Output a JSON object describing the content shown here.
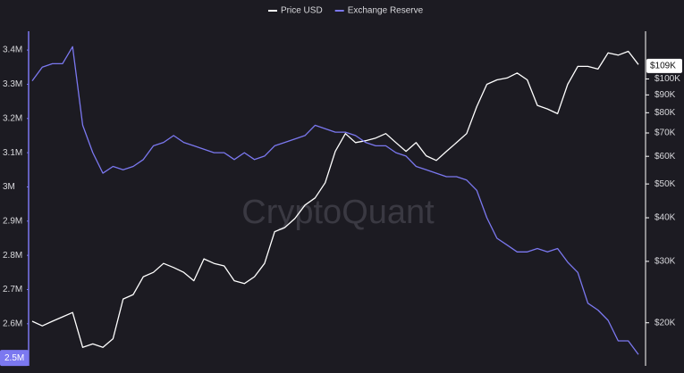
{
  "chart_data": {
    "type": "line",
    "watermark": "CryptoQuant",
    "legend": "top",
    "categories": [
      null,
      null,
      null,
      null,
      null,
      null,
      null,
      null,
      null,
      null,
      null,
      null,
      null,
      null,
      null,
      null,
      null,
      null,
      null,
      null,
      null,
      null,
      null,
      null,
      null,
      null,
      null,
      null,
      null,
      null,
      null,
      null,
      null,
      null,
      null,
      null,
      null,
      null,
      null,
      null,
      null,
      null,
      null,
      null,
      null,
      null,
      null,
      null,
      null,
      null,
      null,
      null,
      null,
      null,
      null,
      null,
      null,
      null,
      null,
      null,
      null
    ],
    "series": [
      {
        "name": "Price USD",
        "color": "#ffffff",
        "axis": "y2",
        "values": [
          20200,
          19600,
          20200,
          20800,
          21400,
          17000,
          17400,
          17000,
          18000,
          23400,
          24100,
          27100,
          27900,
          29600,
          28800,
          27900,
          26400,
          30500,
          29600,
          29100,
          26400,
          25900,
          27100,
          29600,
          36500,
          37500,
          39800,
          43500,
          45600,
          50400,
          62000,
          69700,
          65700,
          66500,
          67700,
          69700,
          65700,
          62000,
          65700,
          60200,
          58400,
          62000,
          65700,
          69700,
          83300,
          96500,
          99400,
          100600,
          104000,
          99400,
          84000,
          82000,
          79500,
          96500,
          108600,
          108600,
          106700,
          118700,
          117000,
          120000,
          110000
        ]
      },
      {
        "name": "Exchange Reserve",
        "color": "#7b78f0",
        "values": [
          3310000,
          3350000,
          3360000,
          3360000,
          3410000,
          3180000,
          3100000,
          3040000,
          3060000,
          3050000,
          3060000,
          3080000,
          3120000,
          3130000,
          3150000,
          3130000,
          3120000,
          3110000,
          3100000,
          3100000,
          3080000,
          3100000,
          3080000,
          3090000,
          3120000,
          3130000,
          3140000,
          3150000,
          3180000,
          3170000,
          3160000,
          3160000,
          3150000,
          3130000,
          3120000,
          3120000,
          3100000,
          3090000,
          3060000,
          3050000,
          3040000,
          3030000,
          3030000,
          3020000,
          2990000,
          2910000,
          2850000,
          2830000,
          2810000,
          2810000,
          2820000,
          2810000,
          2820000,
          2780000,
          2750000,
          2660000,
          2640000,
          2610000,
          2550000,
          2550000,
          2510000
        ]
      }
    ],
    "ylim": [
      2490000,
      3455000
    ],
    "yticks": [
      {
        "value": 2600000,
        "label": "2.6M"
      },
      {
        "value": 2700000,
        "label": "2.7M"
      },
      {
        "value": 2800000,
        "label": "2.8M"
      },
      {
        "value": 2900000,
        "label": "2.9M"
      },
      {
        "value": 3000000,
        "label": "3M"
      },
      {
        "value": 3100000,
        "label": "3.1M"
      },
      {
        "value": 3200000,
        "label": "3.2M"
      },
      {
        "value": 3300000,
        "label": "3.3M"
      },
      {
        "value": 3400000,
        "label": "3.4M"
      }
    ],
    "y2lim": [
      15500,
      137000
    ],
    "y2_log": true,
    "y2ticks": [
      {
        "value": 20000,
        "label": "$20K"
      },
      {
        "value": 30000,
        "label": "$30K"
      },
      {
        "value": 40000,
        "label": "$40K"
      },
      {
        "value": 50000,
        "label": "$50K"
      },
      {
        "value": 60000,
        "label": "$60K"
      },
      {
        "value": 70000,
        "label": "$70K"
      },
      {
        "value": 80000,
        "label": "$80K"
      },
      {
        "value": 90000,
        "label": "$90K"
      },
      {
        "value": 100000,
        "label": "$100K"
      }
    ],
    "annotations": [
      {
        "value": 109000,
        "label": "$109K",
        "axis": "y2"
      },
      {
        "value": 2500000,
        "label": "2.5M",
        "axis": "y"
      }
    ],
    "grid": false
  }
}
